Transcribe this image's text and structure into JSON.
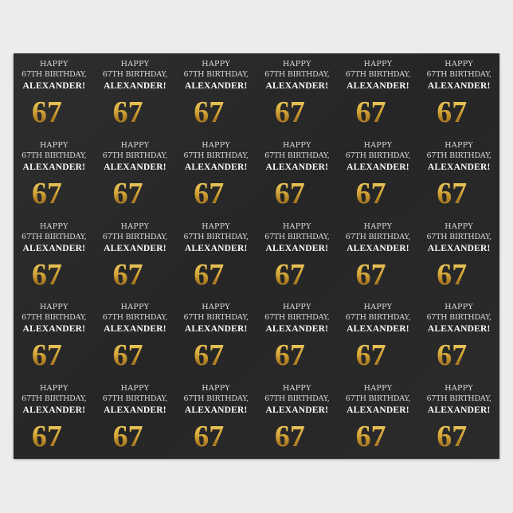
{
  "tile": {
    "line1": "HAPPY",
    "line2": "67TH BIRTHDAY,",
    "name": "ALEXANDER!",
    "number": "67",
    "suffix": "th"
  },
  "grid": {
    "rows": 5,
    "columns": 6
  },
  "colors": {
    "paper": "#2a2a2a",
    "gold": "#d7a93a",
    "text": "#e8e8e8",
    "background": "#ececec"
  }
}
